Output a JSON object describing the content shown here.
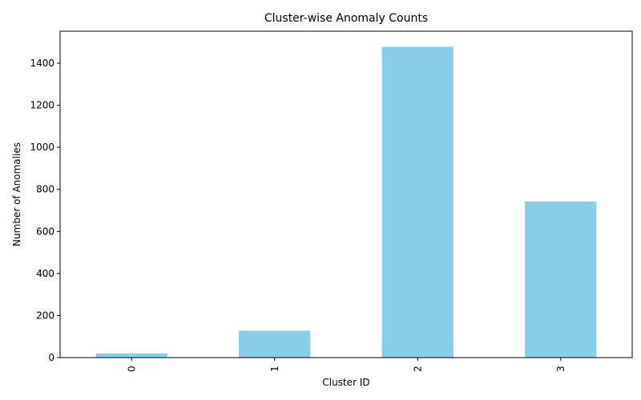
{
  "chart_data": {
    "type": "bar",
    "title": "Cluster-wise Anomaly Counts",
    "xlabel": "Cluster ID",
    "ylabel": "Number of Anomalies",
    "categories": [
      "0",
      "1",
      "2",
      "3"
    ],
    "values": [
      20,
      128,
      1478,
      742
    ],
    "ylim": [
      0,
      1552
    ],
    "yticks": [
      0,
      200,
      400,
      600,
      800,
      1000,
      1200,
      1400
    ],
    "bar_color": "#87ceeb",
    "grid": false,
    "legend": "none"
  }
}
